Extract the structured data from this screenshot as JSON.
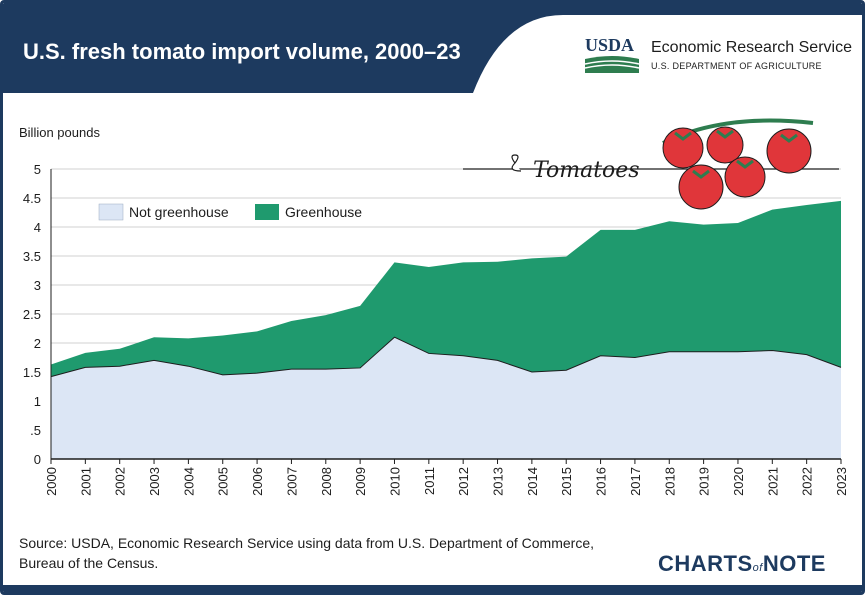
{
  "header": {
    "title": "U.S. fresh tomato import volume, 2000–23",
    "logo_text": "USDA",
    "agency_name": "Economic Research Service",
    "department": "U.S. DEPARTMENT OF AGRICULTURE"
  },
  "decoration": {
    "script_text": "Tomatoes"
  },
  "footer": {
    "source": "Source: USDA, Economic Research Service using data from U.S. Department of Commerce, Bureau of the Census.",
    "brand_prefix": "CHARTS",
    "brand_of": "of",
    "brand_suffix": "NOTE"
  },
  "colors": {
    "navy": "#1d3a5f",
    "greenhouse": "#1f9a6e",
    "not_greenhouse": "#dce6f5",
    "tomato": "#e0363a",
    "stem": "#2e7d4f"
  },
  "chart_data": {
    "type": "area",
    "stacked": true,
    "ylabel": "Billion pounds",
    "ylim": [
      0,
      5
    ],
    "yticks": [
      0,
      0.5,
      1,
      1.5,
      2,
      2.5,
      3,
      3.5,
      4,
      4.5,
      5
    ],
    "ytick_labels": [
      "0",
      ".5",
      "1",
      "1.5",
      "2",
      "2.5",
      "3",
      "3.5",
      "4",
      "4.5",
      "5"
    ],
    "grid": true,
    "legend_position": "top-left",
    "x": [
      "2000",
      "2001",
      "2002",
      "2003",
      "2004",
      "2005",
      "2006",
      "2007",
      "2008",
      "2009",
      "2010",
      "2011",
      "2012",
      "2013",
      "2014",
      "2015",
      "2016",
      "2017",
      "2018",
      "2019",
      "2020",
      "2021",
      "2022",
      "2023"
    ],
    "series": [
      {
        "name": "Not greenhouse",
        "values": [
          1.42,
          1.58,
          1.6,
          1.7,
          1.6,
          1.45,
          1.48,
          1.55,
          1.55,
          1.57,
          2.1,
          1.82,
          1.78,
          1.7,
          1.5,
          1.53,
          1.78,
          1.75,
          1.85,
          1.85,
          1.85,
          1.87,
          1.8,
          1.58
        ]
      },
      {
        "name": "Greenhouse",
        "values": [
          0.21,
          0.25,
          0.3,
          0.4,
          0.48,
          0.68,
          0.72,
          0.83,
          0.93,
          1.07,
          1.29,
          1.49,
          1.61,
          1.7,
          1.96,
          1.96,
          2.17,
          2.2,
          2.25,
          2.19,
          2.22,
          2.43,
          2.58,
          2.87
        ]
      }
    ]
  }
}
